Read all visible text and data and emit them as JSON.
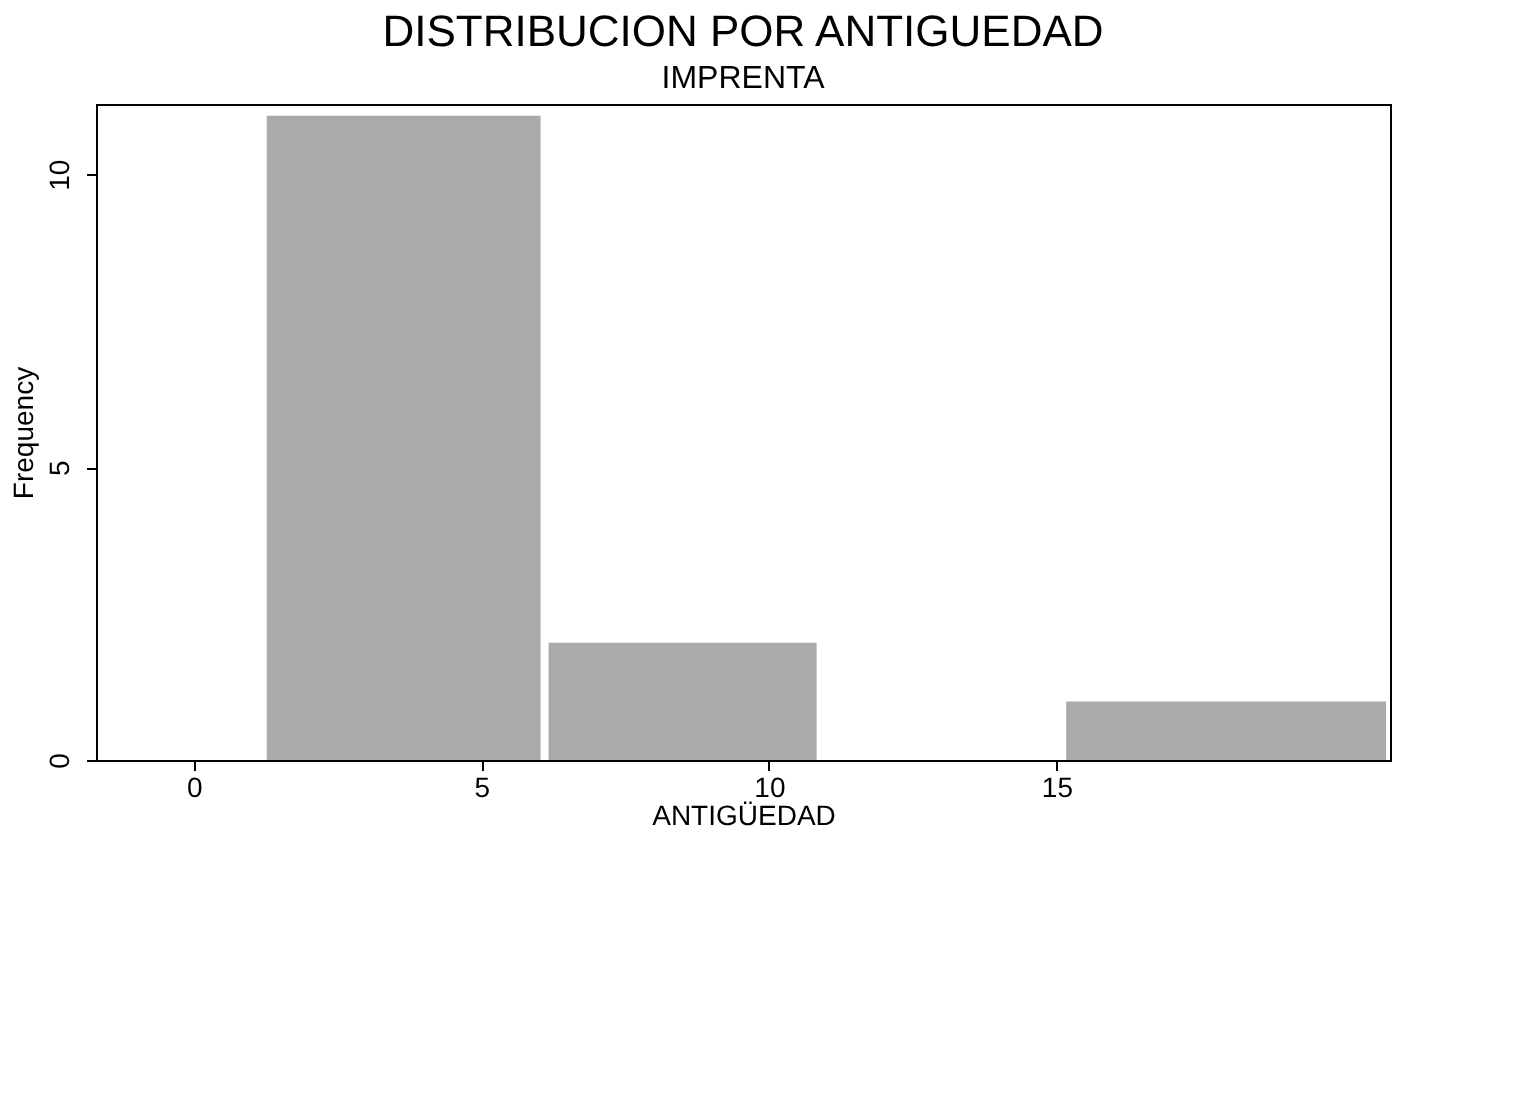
{
  "chart_data": {
    "type": "histogram",
    "title": "DISTRIBUCION POR ANTIGUEDAD",
    "subtitle": "IMPRENTA",
    "xlabel": "ANTIGÜEDAD",
    "ylabel": "Frequency",
    "bins": [
      1.2,
      6.1,
      10.9,
      15.1,
      20.8
    ],
    "values": [
      11,
      2,
      0,
      1
    ],
    "color": "#aaaaaa",
    "xlim": [
      -1.7,
      20.8
    ],
    "xticks": [
      0,
      5,
      10,
      15
    ],
    "ylim": [
      0,
      11.2
    ],
    "yticks": [
      0,
      5,
      10
    ],
    "grid": false
  }
}
